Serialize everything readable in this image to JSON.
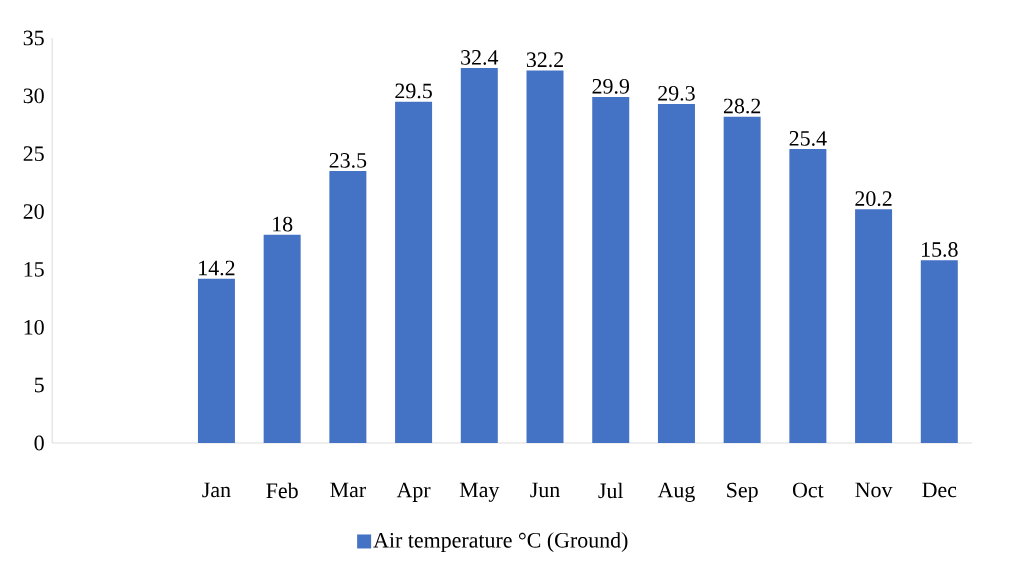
{
  "chart_data": {
    "type": "bar",
    "categories": [
      null,
      null,
      "Jan",
      "Feb",
      "Mar",
      "Apr",
      "May",
      "Jun",
      "Jul",
      "Aug",
      "Sep",
      "Oct",
      "Nov",
      "Dec"
    ],
    "series": [
      {
        "name": "Air temperature °C (Ground)",
        "color": "#4472c4",
        "values": [
          null,
          null,
          14.2,
          18,
          23.5,
          29.5,
          32.4,
          32.2,
          29.9,
          29.3,
          28.2,
          25.4,
          20.2,
          15.8
        ]
      }
    ],
    "ylim": [
      0,
      35
    ],
    "yticks": [
      0,
      5,
      10,
      15,
      20,
      25,
      30,
      35
    ],
    "data_labels": true,
    "legend": "bottom",
    "grid": false
  }
}
